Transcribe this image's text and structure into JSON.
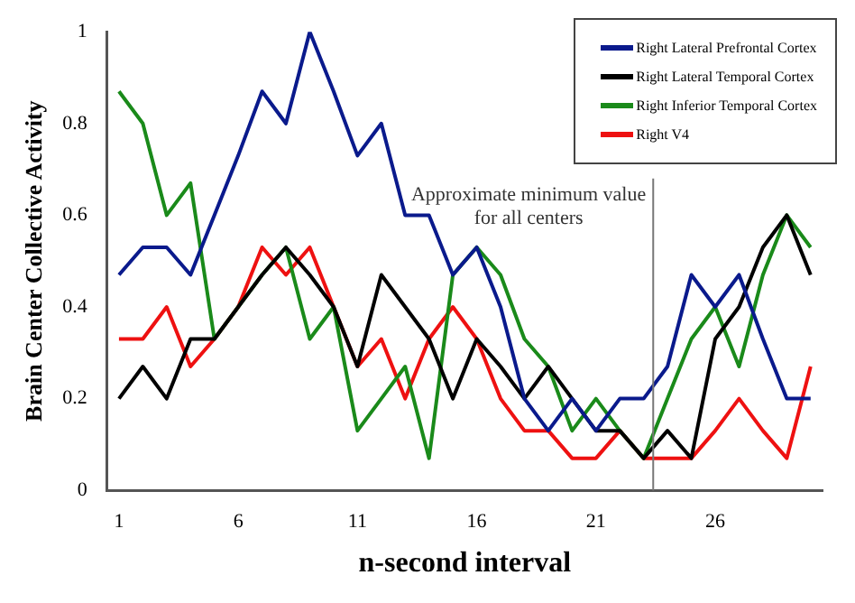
{
  "chart_data": {
    "type": "line",
    "xlabel": "n-second interval",
    "ylabel": "Brain Center Collective Activity",
    "x": [
      1,
      2,
      3,
      4,
      5,
      6,
      7,
      8,
      9,
      10,
      11,
      12,
      13,
      14,
      15,
      16,
      17,
      18,
      19,
      20,
      21,
      22,
      23,
      24,
      25,
      26,
      27,
      28,
      29,
      30
    ],
    "xlim": [
      0.5,
      30.5
    ],
    "xticks": [
      1,
      6,
      11,
      16,
      21,
      26
    ],
    "ylim": [
      0,
      1
    ],
    "yticks": [
      0,
      0.2,
      0.4,
      0.6,
      0.8,
      1
    ],
    "series": [
      {
        "name": "Right Lateral Prefrontal Cortex",
        "color": "#0a1a8c",
        "values": [
          0.47,
          0.53,
          0.53,
          0.47,
          0.6,
          0.73,
          0.87,
          0.8,
          1,
          0.87,
          0.73,
          0.8,
          0.6,
          0.6,
          0.47,
          0.53,
          0.4,
          0.2,
          0.13,
          0.2,
          0.13,
          0.2,
          0.2,
          0.27,
          0.47,
          0.4,
          0.47,
          0.33,
          0.2,
          0.2
        ]
      },
      {
        "name": "Right Lateral Temporal Cortex",
        "color": "#000000",
        "values": [
          0.2,
          0.27,
          0.2,
          0.33,
          0.33,
          0.4,
          0.47,
          0.53,
          0.47,
          0.4,
          0.27,
          0.47,
          0.4,
          0.33,
          0.2,
          0.33,
          0.27,
          0.2,
          0.27,
          0.2,
          0.13,
          0.13,
          0.07,
          0.13,
          0.07,
          0.33,
          0.4,
          0.53,
          0.6,
          0.47
        ]
      },
      {
        "name": "Right Inferior Temporal Cortex",
        "color": "#1a8a1a",
        "values": [
          0.87,
          0.8,
          0.6,
          0.67,
          0.33,
          0.4,
          0.47,
          0.53,
          0.33,
          0.4,
          0.13,
          0.2,
          0.27,
          0.07,
          0.47,
          0.53,
          0.47,
          0.33,
          0.27,
          0.13,
          0.2,
          0.13,
          0.07,
          0.2,
          0.33,
          0.4,
          0.27,
          0.47,
          0.6,
          0.53
        ]
      },
      {
        "name": "Right V4",
        "color": "#ee1111",
        "values": [
          0.33,
          0.33,
          0.4,
          0.27,
          0.33,
          0.4,
          0.53,
          0.47,
          0.53,
          0.4,
          0.27,
          0.33,
          0.2,
          0.33,
          0.4,
          0.33,
          0.2,
          0.13,
          0.13,
          0.07,
          0.07,
          0.13,
          0.07,
          0.07,
          0.07,
          0.13,
          0.2,
          0.13,
          0.07,
          0.27
        ]
      }
    ],
    "ref_lines": [
      {
        "axis": "x",
        "value": 23.4,
        "label": "Approximate minimum value for all centers",
        "color": "#777777"
      }
    ],
    "legend": "top right",
    "grid": false,
    "marker": "none",
    "line_style": "solid"
  }
}
